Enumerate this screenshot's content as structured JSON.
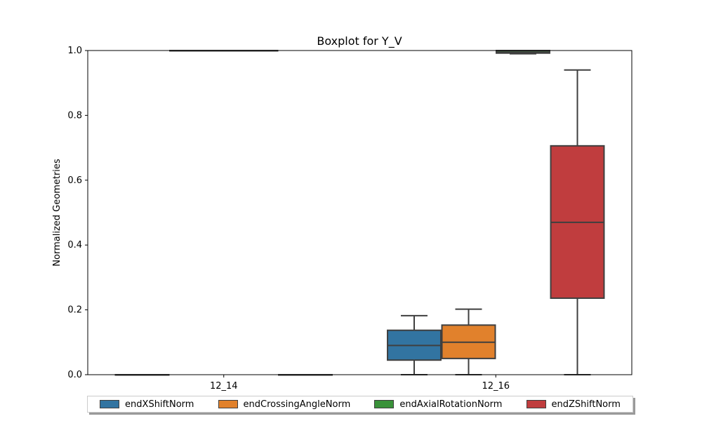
{
  "chart_data": {
    "type": "box",
    "title": "Boxplot for Y_V",
    "xlabel": "",
    "ylabel": "Normalized Geometries",
    "ylim": [
      0.0,
      1.0
    ],
    "yticks": [
      "0.0",
      "0.2",
      "0.4",
      "0.6",
      "0.8",
      "1.0"
    ],
    "categories": [
      "12_14",
      "12_16"
    ],
    "legend_position": "bottom",
    "series": [
      {
        "name": "endXShiftNorm",
        "color": "#3274a1",
        "boxes": [
          {
            "category": "12_14",
            "min": 0.0,
            "q1": 0.0,
            "median": 0.0,
            "q3": 0.0,
            "max": 0.0
          },
          {
            "category": "12_16",
            "min": 0.0,
            "q1": 0.045,
            "median": 0.09,
            "q3": 0.137,
            "max": 0.182
          }
        ]
      },
      {
        "name": "endCrossingAngleNorm",
        "color": "#e1812c",
        "boxes": [
          {
            "category": "12_14",
            "min": 1.0,
            "q1": 1.0,
            "median": 1.0,
            "q3": 1.0,
            "max": 1.0
          },
          {
            "category": "12_16",
            "min": 0.0,
            "q1": 0.05,
            "median": 0.1,
            "q3": 0.153,
            "max": 0.202
          }
        ]
      },
      {
        "name": "endAxialRotationNorm",
        "color": "#3a923a",
        "boxes": [
          {
            "category": "12_14",
            "min": 1.0,
            "q1": 1.0,
            "median": 1.0,
            "q3": 1.0,
            "max": 1.0
          },
          {
            "category": "12_16",
            "min": 0.99,
            "q1": 0.992,
            "median": 0.995,
            "q3": 1.0,
            "max": 1.0
          }
        ]
      },
      {
        "name": "endZShiftNorm",
        "color": "#c03d3e",
        "boxes": [
          {
            "category": "12_14",
            "min": 0.0,
            "q1": 0.0,
            "median": 0.0,
            "q3": 0.0,
            "max": 0.0
          },
          {
            "category": "12_16",
            "min": 0.0,
            "q1": 0.236,
            "median": 0.47,
            "q3": 0.706,
            "max": 0.94
          }
        ]
      }
    ]
  }
}
